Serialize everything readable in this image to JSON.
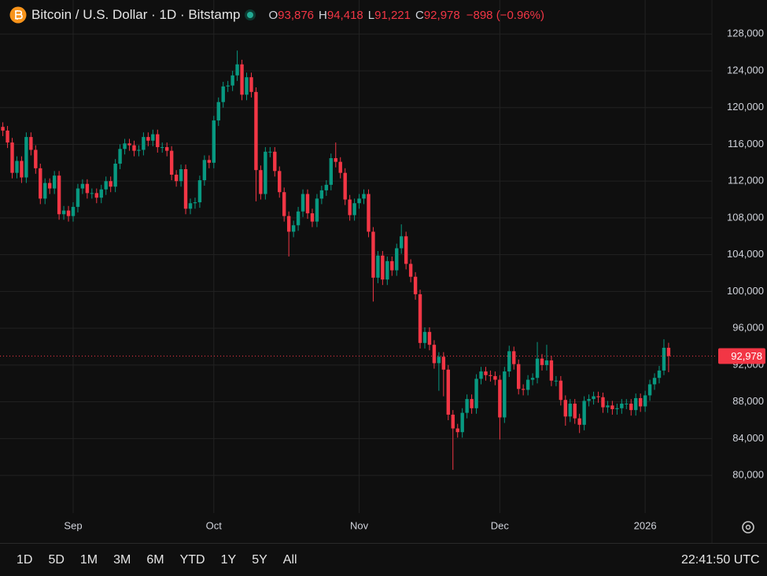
{
  "chart_data": {
    "type": "candlestick",
    "title": "Bitcoin / U.S. Dollar · 1D · Bitstamp",
    "legend": [
      {
        "key": "O",
        "value": "93,876"
      },
      {
        "key": "H",
        "value": "94,418"
      },
      {
        "key": "L",
        "value": "91,221"
      },
      {
        "key": "C",
        "value": "92,978"
      }
    ],
    "change": "−898 (−0.96%)",
    "categories": [
      null,
      null,
      null,
      null,
      null,
      null,
      null,
      null,
      null,
      null,
      null,
      null,
      null,
      null,
      null,
      "Sep",
      null,
      null,
      null,
      null,
      null,
      null,
      null,
      null,
      null,
      null,
      null,
      null,
      null,
      null,
      null,
      null,
      null,
      null,
      null,
      null,
      null,
      null,
      null,
      null,
      null,
      null,
      null,
      null,
      null,
      "Oct",
      null,
      null,
      null,
      null,
      null,
      null,
      null,
      null,
      null,
      null,
      null,
      null,
      null,
      null,
      null,
      null,
      null,
      null,
      null,
      null,
      null,
      null,
      null,
      null,
      null,
      null,
      null,
      null,
      null,
      null,
      "Nov",
      null,
      null,
      null,
      null,
      null,
      null,
      null,
      null,
      null,
      null,
      null,
      null,
      null,
      null,
      null,
      null,
      null,
      null,
      null,
      null,
      null,
      null,
      null,
      null,
      null,
      null,
      null,
      null,
      null,
      "Dec",
      null,
      null,
      null,
      null,
      null,
      null,
      null,
      null,
      null,
      null,
      null,
      null,
      null,
      null,
      null,
      null,
      null,
      null,
      null,
      null,
      null,
      null,
      null,
      null,
      null,
      null,
      null,
      null,
      null,
      null,
      "2026",
      null,
      null,
      null,
      null,
      null
    ],
    "open": [
      117900,
      117500,
      116200,
      112900,
      114200,
      112400,
      116800,
      115400,
      113400,
      110100,
      111800,
      111200,
      112600,
      108400,
      108800,
      108200,
      109200,
      111200,
      111700,
      110700,
      110700,
      110200,
      111100,
      112000,
      111400,
      113900,
      115500,
      116100,
      115900,
      115300,
      115400,
      116800,
      116400,
      117100,
      115700,
      115700,
      115300,
      112700,
      112000,
      113300,
      109000,
      109600,
      109700,
      112100,
      114300,
      114000,
      118600,
      120600,
      122300,
      122400,
      123500,
      124700,
      121400,
      123300,
      121700,
      113200,
      110600,
      115200,
      115200,
      113100,
      110800,
      108200,
      106500,
      107200,
      108700,
      110600,
      108500,
      107600,
      110100,
      111000,
      111600,
      114500,
      114100,
      112900,
      110000,
      108300,
      109600,
      110100,
      110600,
      106500,
      101500,
      103900,
      101300,
      103300,
      102300,
      104700,
      106000,
      103000,
      101600,
      99700,
      94400,
      95600,
      94200,
      92200,
      92900,
      91500,
      86600,
      85100,
      84700,
      86800,
      88300,
      87300,
      90500,
      91300,
      90900,
      90800,
      90400,
      86300,
      91300,
      93500,
      92100,
      89400,
      89300,
      90400,
      90600,
      92700,
      92000,
      92500,
      90300,
      90300,
      88200,
      86400,
      87800,
      86200,
      85500,
      88100,
      88300,
      88600,
      88500,
      87400,
      87600,
      87200,
      87300,
      87800,
      87800,
      87100,
      88400,
      87500,
      88700,
      89900,
      90600,
      91400,
      93876
    ],
    "high": [
      118400,
      118000,
      116700,
      114700,
      114700,
      117300,
      117300,
      115900,
      113900,
      112300,
      112300,
      113100,
      113100,
      109300,
      109300,
      109700,
      111700,
      112200,
      112200,
      111200,
      111200,
      111600,
      112500,
      112500,
      114400,
      116000,
      116600,
      116600,
      116400,
      115900,
      117300,
      117300,
      117600,
      117600,
      116200,
      116200,
      115800,
      113200,
      113800,
      113800,
      110100,
      110200,
      112600,
      114800,
      114800,
      119100,
      121100,
      122800,
      122900,
      124000,
      126200,
      125200,
      123800,
      123800,
      122200,
      113700,
      115700,
      115700,
      115700,
      113600,
      111300,
      108700,
      107700,
      109200,
      111100,
      111100,
      109000,
      110600,
      111500,
      112100,
      115000,
      116200,
      114600,
      113400,
      110500,
      110100,
      110600,
      111100,
      111100,
      107000,
      104400,
      104400,
      103800,
      103800,
      105200,
      107300,
      106500,
      103500,
      102100,
      100200,
      96100,
      96100,
      94700,
      93400,
      93400,
      92000,
      87100,
      85600,
      87300,
      88800,
      88800,
      91000,
      91800,
      91800,
      91400,
      91300,
      90900,
      91800,
      94100,
      94000,
      92600,
      89900,
      90900,
      91100,
      94500,
      93200,
      94200,
      93000,
      90800,
      90800,
      88700,
      88300,
      88300,
      86700,
      88600,
      88800,
      89100,
      89100,
      89000,
      88100,
      88100,
      87800,
      88300,
      88300,
      88300,
      88900,
      88900,
      89200,
      90400,
      91100,
      91900,
      94800,
      94418
    ],
    "low": [
      116900,
      115600,
      112300,
      112300,
      111800,
      111800,
      114800,
      112800,
      109500,
      109500,
      110600,
      110600,
      107800,
      107800,
      107600,
      107600,
      108600,
      110600,
      110100,
      110100,
      109600,
      109600,
      110500,
      110800,
      110800,
      113300,
      114900,
      115300,
      114700,
      114700,
      114800,
      115800,
      115800,
      115100,
      115100,
      114700,
      112100,
      111400,
      111400,
      108400,
      108400,
      109000,
      109100,
      111500,
      113400,
      113400,
      118000,
      120000,
      121700,
      121800,
      122900,
      120800,
      120800,
      121100,
      109800,
      110000,
      110000,
      114600,
      112500,
      110200,
      107600,
      103800,
      105900,
      106600,
      108100,
      107900,
      107000,
      107000,
      109500,
      110400,
      111000,
      113500,
      112300,
      109400,
      107700,
      107700,
      109000,
      109500,
      105900,
      98900,
      100900,
      100700,
      100700,
      101700,
      101700,
      104100,
      102400,
      101000,
      99100,
      93800,
      93800,
      93600,
      91600,
      89200,
      88600,
      86000,
      80600,
      84100,
      84100,
      86200,
      86700,
      86700,
      89900,
      90300,
      90200,
      89800,
      83900,
      85700,
      90700,
      91500,
      88800,
      88700,
      88700,
      89800,
      90000,
      91400,
      91400,
      89700,
      89700,
      87600,
      85400,
      85800,
      85600,
      84600,
      84900,
      87500,
      87700,
      87900,
      86800,
      86800,
      86600,
      86600,
      86700,
      87200,
      86500,
      86500,
      86900,
      86900,
      88100,
      89300,
      90000,
      90900,
      91221
    ],
    "close": [
      117500,
      116200,
      112900,
      114200,
      112400,
      116800,
      115400,
      113400,
      110100,
      111800,
      111200,
      112600,
      108400,
      108800,
      108200,
      109200,
      111200,
      111700,
      110700,
      110700,
      110200,
      111100,
      112000,
      111400,
      113900,
      115500,
      116100,
      115900,
      115300,
      115400,
      116800,
      116400,
      117100,
      115700,
      115700,
      115300,
      112700,
      112000,
      113300,
      109000,
      109600,
      109700,
      112100,
      114300,
      114000,
      118600,
      120600,
      122300,
      122400,
      123500,
      124700,
      121400,
      123300,
      121700,
      113200,
      110600,
      115200,
      115200,
      113100,
      110800,
      108200,
      106500,
      107200,
      108700,
      110600,
      108500,
      107600,
      110100,
      111000,
      111600,
      114500,
      114100,
      112900,
      110000,
      108300,
      109600,
      110100,
      110600,
      106500,
      101500,
      103900,
      101300,
      103300,
      102300,
      104700,
      106000,
      103000,
      101600,
      99700,
      94400,
      95600,
      94200,
      92200,
      92900,
      91500,
      86600,
      85100,
      84700,
      86800,
      88300,
      87300,
      90500,
      91300,
      90900,
      90800,
      90400,
      86300,
      91300,
      93500,
      92100,
      89400,
      89300,
      90400,
      90600,
      92700,
      92000,
      92500,
      90300,
      90300,
      88200,
      86400,
      87800,
      86200,
      85500,
      88100,
      88300,
      88600,
      88500,
      87400,
      87600,
      87200,
      87300,
      87800,
      87800,
      87100,
      88400,
      87500,
      88700,
      89900,
      90600,
      91400,
      93876,
      92978
    ],
    "up_color": "#089981",
    "down_color": "#f23645",
    "ylim": [
      75900,
      131700
    ],
    "yticks": [
      {
        "value": 80000,
        "label": "80,000"
      },
      {
        "value": 84000,
        "label": "84,000"
      },
      {
        "value": 88000,
        "label": "88,000"
      },
      {
        "value": 92000,
        "label": "92,000"
      },
      {
        "value": 96000,
        "label": "96,000"
      },
      {
        "value": 100000,
        "label": "100,000"
      },
      {
        "value": 104000,
        "label": "104,000"
      },
      {
        "value": 108000,
        "label": "108,000"
      },
      {
        "value": 112000,
        "label": "112,000"
      },
      {
        "value": 116000,
        "label": "116,000"
      },
      {
        "value": 120000,
        "label": "120,000"
      },
      {
        "value": 124000,
        "label": "124,000"
      },
      {
        "value": 128000,
        "label": "128,000"
      }
    ],
    "grid": true,
    "price_line": {
      "value": 92978,
      "label": "92,978"
    }
  },
  "toolbar": {
    "ranges": [
      "1D",
      "5D",
      "1M",
      "3M",
      "6M",
      "YTD",
      "1Y",
      "5Y",
      "All"
    ],
    "clock": "22:41:50 UTC"
  }
}
